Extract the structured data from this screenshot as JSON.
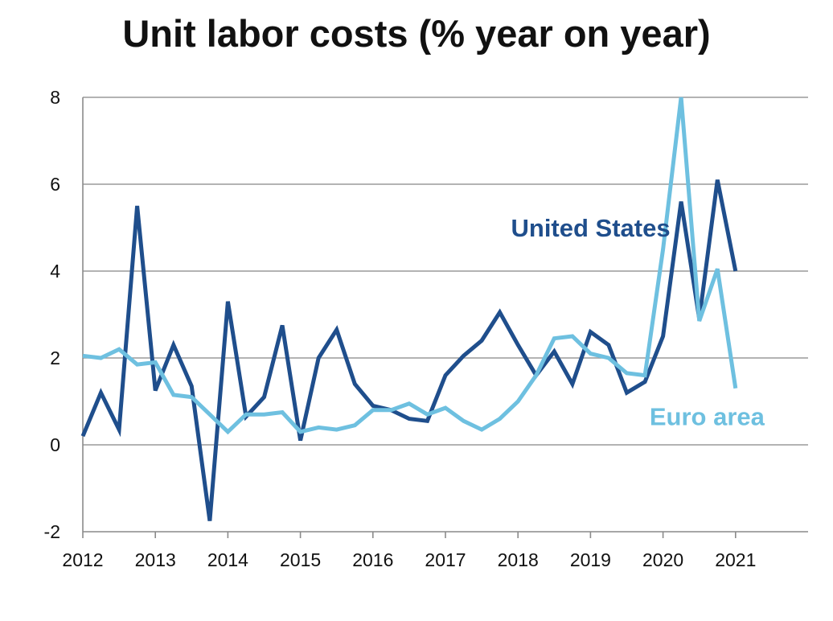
{
  "chart_data": {
    "type": "line",
    "title": "Unit labor costs (% year on year)",
    "xlabel": "",
    "ylabel": "",
    "xlim": [
      2012,
      2022
    ],
    "ylim": [
      -2,
      8
    ],
    "yticks": [
      -2,
      0,
      2,
      4,
      6,
      8
    ],
    "xticks": [
      "2012",
      "2013",
      "2014",
      "2015",
      "2016",
      "2017",
      "2018",
      "2019",
      "2020",
      "2021"
    ],
    "grid": "horizontal",
    "series": [
      {
        "name": "United States",
        "color": "#1f4e8c",
        "label_anchor": [
          2020.1,
          4.8
        ],
        "x": [
          2012.0,
          2012.25,
          2012.5,
          2012.75,
          2013.0,
          2013.25,
          2013.5,
          2013.75,
          2014.0,
          2014.25,
          2014.5,
          2014.75,
          2015.0,
          2015.25,
          2015.5,
          2015.75,
          2016.0,
          2016.25,
          2016.5,
          2016.75,
          2017.0,
          2017.25,
          2017.5,
          2017.75,
          2018.0,
          2018.25,
          2018.5,
          2018.75,
          2019.0,
          2019.25,
          2019.5,
          2019.75,
          2020.0,
          2020.25,
          2020.5,
          2020.75,
          2021.0
        ],
        "values": [
          0.2,
          1.2,
          0.35,
          5.5,
          1.25,
          2.3,
          1.35,
          -1.75,
          3.3,
          0.65,
          1.1,
          2.75,
          0.1,
          2.0,
          2.65,
          1.4,
          0.9,
          0.8,
          0.6,
          0.55,
          1.6,
          2.05,
          2.4,
          3.05,
          2.3,
          1.6,
          2.15,
          1.4,
          2.6,
          2.3,
          1.2,
          1.45,
          2.5,
          5.6,
          2.9,
          6.1,
          4.0
        ]
      },
      {
        "name": "Euro area",
        "color": "#6ec0e0",
        "label_anchor": [
          2021.4,
          0.45
        ],
        "x": [
          2012.0,
          2012.25,
          2012.5,
          2012.75,
          2013.0,
          2013.25,
          2013.5,
          2013.75,
          2014.0,
          2014.25,
          2014.5,
          2014.75,
          2015.0,
          2015.25,
          2015.5,
          2015.75,
          2016.0,
          2016.25,
          2016.5,
          2016.75,
          2017.0,
          2017.25,
          2017.5,
          2017.75,
          2018.0,
          2018.25,
          2018.5,
          2018.75,
          2019.0,
          2019.25,
          2019.5,
          2019.75,
          2020.0,
          2020.25,
          2020.5,
          2020.75,
          2021.0
        ],
        "values": [
          2.05,
          2.0,
          2.2,
          1.85,
          1.9,
          1.15,
          1.1,
          0.7,
          0.3,
          0.7,
          0.7,
          0.75,
          0.3,
          0.4,
          0.35,
          0.45,
          0.8,
          0.8,
          0.95,
          0.7,
          0.85,
          0.55,
          0.35,
          0.6,
          1.0,
          1.6,
          2.45,
          2.5,
          2.1,
          2.0,
          1.65,
          1.6,
          4.5,
          8.0,
          2.85,
          4.05,
          1.3
        ]
      }
    ]
  }
}
